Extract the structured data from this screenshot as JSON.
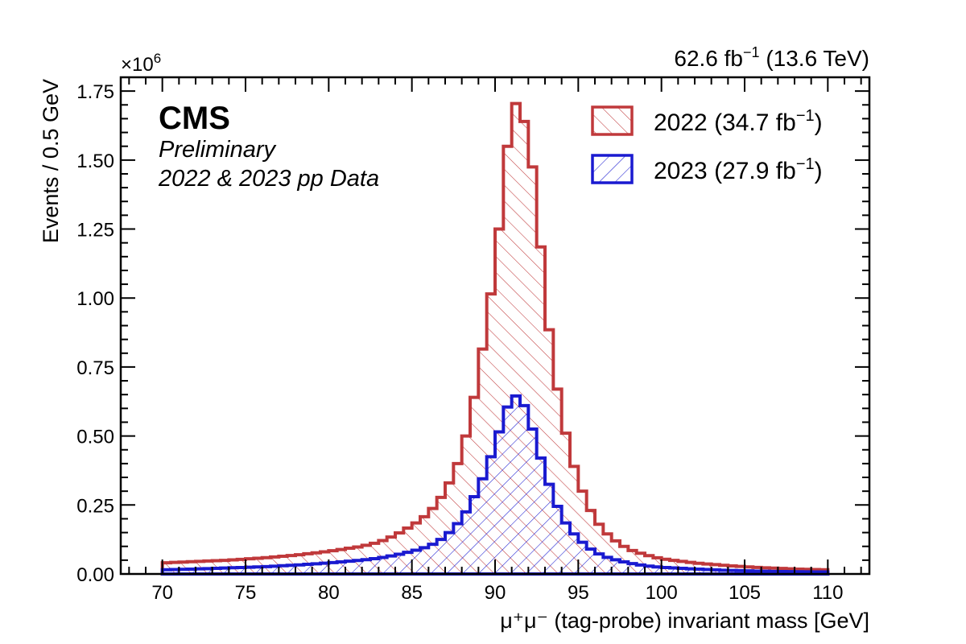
{
  "header": {
    "lumi_text": "62.6 fb",
    "lumi_sup": "−1",
    "lumi_energy": " (13.6 TeV)",
    "multiplier_base": "×10",
    "multiplier_exp": "6"
  },
  "labels": {
    "cms": "CMS",
    "preliminary": "Preliminary",
    "dataset": "2022 & 2023 pp Data"
  },
  "legend": {
    "entries": [
      {
        "pre": "2022 (34.7 fb",
        "sup": "−1",
        "post": ")",
        "color": "#c0393b",
        "hatch": "backslash"
      },
      {
        "pre": "2023 (27.9 fb",
        "sup": "−1",
        "post": ")",
        "color": "#1a1ad0",
        "hatch": "slash"
      }
    ]
  },
  "chart_data": {
    "type": "histogram",
    "xlabel": "μ⁺μ⁻ (tag-probe) invariant mass [GeV]",
    "ylabel": "Events / 0.5 GeV",
    "x_bin_edges_start": 70,
    "x_bin_edges_end": 110,
    "bin_width": 0.5,
    "xlim": [
      67.5,
      112.5
    ],
    "ylim": [
      0,
      1.8
    ],
    "y_unit_multiplier": "×10^6",
    "x_ticks": [
      "70",
      "75",
      "80",
      "85",
      "90",
      "95",
      "100",
      "105",
      "110"
    ],
    "y_ticks": [
      "0.00",
      "0.25",
      "0.50",
      "0.75",
      "1.00",
      "1.25",
      "1.50",
      "1.75"
    ],
    "grid": false,
    "legend_position": "top-right",
    "series": [
      {
        "name": "2022 (34.7 fb⁻¹)",
        "color": "#c0393b",
        "anchors": [
          [
            70,
            0.04
          ],
          [
            72,
            0.045
          ],
          [
            74,
            0.05
          ],
          [
            76,
            0.058
          ],
          [
            78,
            0.068
          ],
          [
            80,
            0.082
          ],
          [
            82,
            0.1
          ],
          [
            83,
            0.115
          ],
          [
            84,
            0.14
          ],
          [
            85,
            0.175
          ],
          [
            85.5,
            0.195
          ],
          [
            86,
            0.22
          ],
          [
            86.5,
            0.255
          ],
          [
            87,
            0.3
          ],
          [
            87.5,
            0.36
          ],
          [
            88,
            0.44
          ],
          [
            88.5,
            0.56
          ],
          [
            89,
            0.72
          ],
          [
            89.5,
            0.91
          ],
          [
            90,
            1.12
          ],
          [
            90.5,
            1.38
          ],
          [
            91,
            1.72
          ],
          [
            91.5,
            1.69
          ],
          [
            92,
            1.59
          ],
          [
            92.5,
            1.36
          ],
          [
            93,
            1.01
          ],
          [
            93.5,
            0.76
          ],
          [
            94,
            0.58
          ],
          [
            94.5,
            0.44
          ],
          [
            95,
            0.34
          ],
          [
            95.5,
            0.26
          ],
          [
            96,
            0.2
          ],
          [
            96.5,
            0.16
          ],
          [
            97,
            0.13
          ],
          [
            98,
            0.09
          ],
          [
            99,
            0.07
          ],
          [
            100,
            0.055
          ],
          [
            102,
            0.04
          ],
          [
            104,
            0.03
          ],
          [
            106,
            0.023
          ],
          [
            108,
            0.018
          ],
          [
            110,
            0.015
          ]
        ]
      },
      {
        "name": "2023 (27.9 fb⁻¹)",
        "color": "#1a1ad0",
        "anchors": [
          [
            70,
            0.015
          ],
          [
            72,
            0.018
          ],
          [
            74,
            0.022
          ],
          [
            76,
            0.026
          ],
          [
            78,
            0.032
          ],
          [
            80,
            0.04
          ],
          [
            82,
            0.05
          ],
          [
            83,
            0.057
          ],
          [
            84,
            0.068
          ],
          [
            85,
            0.082
          ],
          [
            85.5,
            0.09
          ],
          [
            86,
            0.1
          ],
          [
            86.5,
            0.115
          ],
          [
            87,
            0.135
          ],
          [
            87.5,
            0.165
          ],
          [
            88,
            0.2
          ],
          [
            88.5,
            0.25
          ],
          [
            89,
            0.31
          ],
          [
            89.5,
            0.38
          ],
          [
            90,
            0.47
          ],
          [
            90.5,
            0.56
          ],
          [
            91,
            0.65
          ],
          [
            91.5,
            0.64
          ],
          [
            92,
            0.58
          ],
          [
            92.5,
            0.47
          ],
          [
            93,
            0.37
          ],
          [
            93.5,
            0.28
          ],
          [
            94,
            0.21
          ],
          [
            94.5,
            0.16
          ],
          [
            95,
            0.13
          ],
          [
            95.5,
            0.1
          ],
          [
            96,
            0.08
          ],
          [
            96.5,
            0.065
          ],
          [
            97,
            0.055
          ],
          [
            98,
            0.04
          ],
          [
            99,
            0.03
          ],
          [
            100,
            0.024
          ],
          [
            102,
            0.018
          ],
          [
            104,
            0.013
          ],
          [
            106,
            0.01
          ],
          [
            108,
            0.008
          ],
          [
            110,
            0.007
          ]
        ]
      }
    ]
  }
}
